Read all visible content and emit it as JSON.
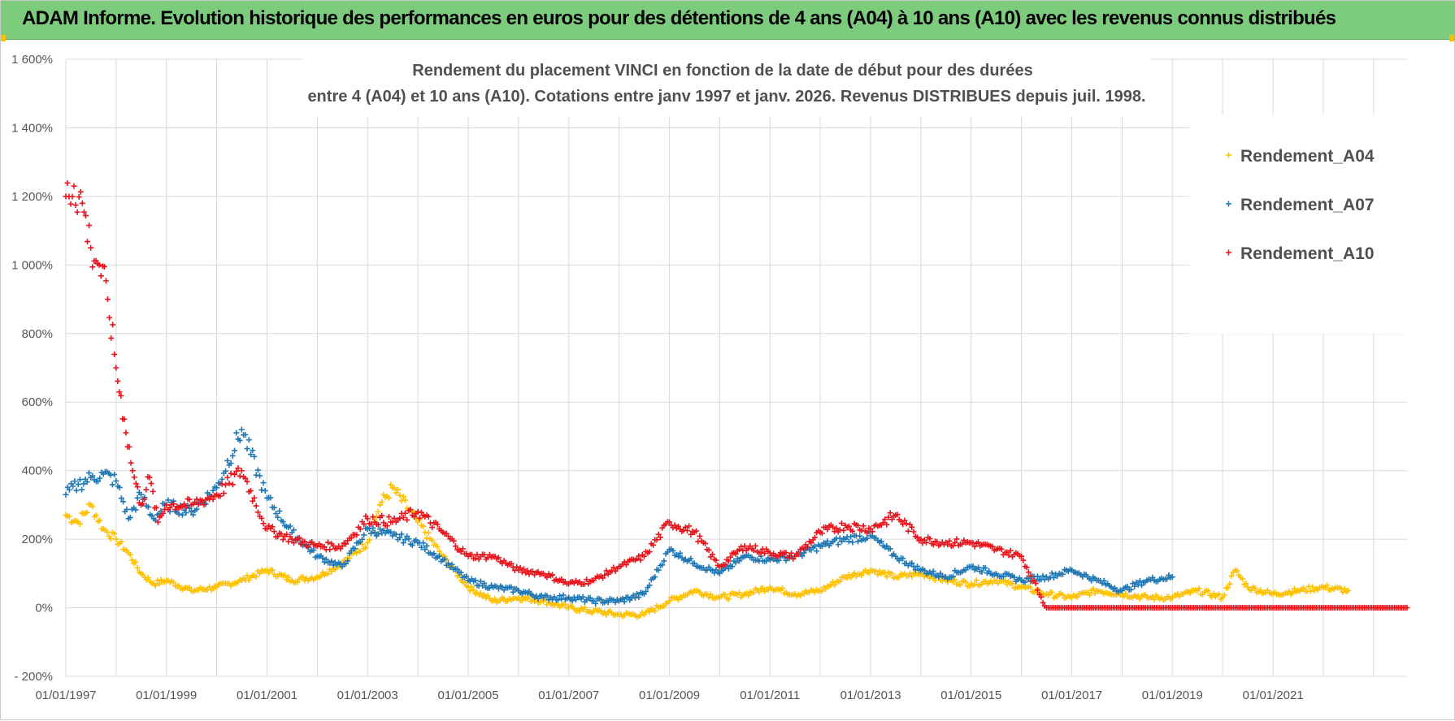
{
  "header": {
    "title": "ADAM Informe. Evolution historique des performances en euros pour des détentions de 4 ans (A04) à 10 ans (A10) avec les revenus connus distribués"
  },
  "colors": {
    "header_bg": "#7dcb7d",
    "A04": "#ffc000",
    "A07": "#1f77b4",
    "A10": "#e8141c",
    "grid": "#d9d9d9"
  },
  "chart_data": {
    "type": "scatter",
    "title_lines": [
      "Rendement du placement VINCI en fonction de la date de début pour des durées",
      "entre 4 (A04) et 10 ans (A10). Cotations entre janv 1997 et janv. 2026. Revenus DISTRIBUES depuis juil. 1998."
    ],
    "xlabel": "",
    "ylabel": "",
    "x_axis": {
      "min": "1997-01-01",
      "max": "2023-09-01",
      "tick_labels": [
        "01/01/1997",
        "01/01/1999",
        "01/01/2001",
        "01/01/2003",
        "01/01/2005",
        "01/01/2007",
        "01/01/2009",
        "01/01/2011",
        "01/01/2013",
        "01/01/2015",
        "01/01/2017",
        "01/01/2019",
        "01/01/2021"
      ],
      "gridlines_years": [
        1997,
        1998,
        1999,
        2000,
        2001,
        2002,
        2003,
        2004,
        2005,
        2006,
        2007,
        2008,
        2009,
        2010,
        2011,
        2012,
        2013,
        2014,
        2015,
        2016,
        2017,
        2018,
        2019,
        2020,
        2021,
        2022,
        2023
      ]
    },
    "y_axis": {
      "min": -200,
      "max": 1600,
      "unit": "%",
      "tick_labels": [
        "- 200%",
        "0%",
        "200%",
        "400%",
        "600%",
        "800%",
        "1 000%",
        "1 200%",
        "1 400%",
        "1 600%"
      ],
      "tick_values": [
        -200,
        0,
        200,
        400,
        600,
        800,
        1000,
        1200,
        1400,
        1600
      ]
    },
    "grid": true,
    "legend_position": "top-right",
    "marker": "+",
    "series": [
      {
        "name": "Rendement_A04",
        "color": "#ffc000",
        "x": [
          "1997-01-01",
          "1997-04-01",
          "1997-07-01",
          "1997-10-01",
          "1998-01-01",
          "1998-04-01",
          "1998-07-01",
          "1998-10-01",
          "1999-01-01",
          "1999-07-01",
          "2000-01-01",
          "2000-07-01",
          "2001-01-01",
          "2001-07-01",
          "2002-01-01",
          "2002-07-01",
          "2003-01-01",
          "2003-04-01",
          "2003-07-01",
          "2004-01-01",
          "2004-07-01",
          "2005-01-01",
          "2005-07-01",
          "2006-01-01",
          "2006-07-01",
          "2007-01-01",
          "2007-07-01",
          "2008-01-01",
          "2008-07-01",
          "2009-01-01",
          "2009-07-01",
          "2010-01-01",
          "2010-07-01",
          "2011-01-01",
          "2011-07-01",
          "2012-01-01",
          "2012-07-01",
          "2013-01-01",
          "2013-07-01",
          "2014-01-01",
          "2014-07-01",
          "2015-01-01",
          "2015-07-01",
          "2016-01-01",
          "2016-07-01",
          "2017-01-01",
          "2017-07-01",
          "2018-01-01",
          "2018-07-01",
          "2019-01-01",
          "2019-07-01",
          "2020-01-01",
          "2020-04-01",
          "2020-07-01",
          "2021-01-01",
          "2021-07-01",
          "2022-01-01",
          "2022-07-01"
        ],
        "y": [
          270,
          250,
          300,
          230,
          200,
          160,
          100,
          70,
          80,
          50,
          60,
          80,
          110,
          80,
          90,
          130,
          190,
          300,
          350,
          250,
          150,
          60,
          20,
          30,
          20,
          0,
          -10,
          -20,
          -20,
          20,
          50,
          30,
          40,
          60,
          40,
          50,
          90,
          110,
          90,
          100,
          80,
          70,
          80,
          60,
          40,
          30,
          50,
          40,
          30,
          30,
          50,
          30,
          110,
          60,
          40,
          50,
          60,
          50
        ]
      },
      {
        "name": "Rendement_A07",
        "color": "#1f77b4",
        "x": [
          "1997-01-01",
          "1997-04-01",
          "1997-07-01",
          "1997-10-01",
          "1998-01-01",
          "1998-04-01",
          "1998-07-01",
          "1998-10-01",
          "1999-01-01",
          "1999-07-01",
          "2000-01-01",
          "2000-07-01",
          "2001-01-01",
          "2001-07-01",
          "2002-01-01",
          "2002-07-01",
          "2003-01-01",
          "2003-07-01",
          "2004-01-01",
          "2004-07-01",
          "2005-01-01",
          "2005-07-01",
          "2006-01-01",
          "2006-07-01",
          "2007-01-01",
          "2007-07-01",
          "2008-01-01",
          "2008-07-01",
          "2009-01-01",
          "2009-07-01",
          "2010-01-01",
          "2010-07-01",
          "2011-01-01",
          "2011-07-01",
          "2012-01-01",
          "2012-07-01",
          "2013-01-01",
          "2013-07-01",
          "2014-01-01",
          "2014-07-01",
          "2015-01-01",
          "2015-07-01",
          "2016-01-01",
          "2016-07-01",
          "2017-01-01",
          "2017-07-01",
          "2018-01-01",
          "2018-07-01",
          "2019-01-01"
        ],
        "y": [
          330,
          360,
          380,
          390,
          370,
          260,
          330,
          260,
          300,
          280,
          350,
          520,
          320,
          220,
          150,
          120,
          230,
          210,
          190,
          140,
          80,
          60,
          50,
          30,
          30,
          20,
          20,
          40,
          170,
          130,
          100,
          150,
          140,
          150,
          180,
          200,
          210,
          150,
          110,
          90,
          120,
          100,
          80,
          90,
          110,
          80,
          50,
          80,
          90
        ]
      },
      {
        "name": "Rendement_A10",
        "color": "#e8141c",
        "x": [
          "1997-01-01",
          "1997-03-01",
          "1997-05-01",
          "1997-07-01",
          "1997-09-01",
          "1997-11-01",
          "1998-01-01",
          "1998-03-01",
          "1998-05-01",
          "1998-07-01",
          "1998-09-01",
          "1998-11-01",
          "1999-01-01",
          "1999-07-01",
          "2000-01-01",
          "2000-07-01",
          "2001-01-01",
          "2001-07-01",
          "2002-01-01",
          "2002-07-01",
          "2003-01-01",
          "2003-07-01",
          "2004-01-01",
          "2004-07-01",
          "2005-01-01",
          "2005-07-01",
          "2006-01-01",
          "2006-07-01",
          "2007-01-01",
          "2007-07-01",
          "2008-01-01",
          "2008-07-01",
          "2009-01-01",
          "2009-07-01",
          "2010-01-01",
          "2010-07-01",
          "2011-01-01",
          "2011-07-01",
          "2012-01-01",
          "2012-07-01",
          "2013-01-01",
          "2013-07-01",
          "2014-01-01",
          "2014-07-01",
          "2015-01-01",
          "2015-07-01",
          "2016-01-01",
          "2016-07-01",
          "2017-01-01",
          "2018-01-01",
          "2019-01-01",
          "2020-01-01",
          "2021-01-01",
          "2022-01-01",
          "2023-01-01",
          "2023-09-01"
        ],
        "y": [
          1200,
          1230,
          1180,
          1050,
          1000,
          900,
          700,
          550,
          400,
          300,
          380,
          250,
          300,
          300,
          330,
          400,
          230,
          200,
          180,
          180,
          260,
          250,
          280,
          220,
          150,
          150,
          110,
          100,
          70,
          80,
          120,
          150,
          250,
          220,
          120,
          180,
          160,
          150,
          220,
          240,
          230,
          270,
          200,
          190,
          190,
          170,
          150,
          0,
          0,
          0,
          0,
          0,
          0,
          0,
          0,
          0
        ]
      }
    ]
  }
}
